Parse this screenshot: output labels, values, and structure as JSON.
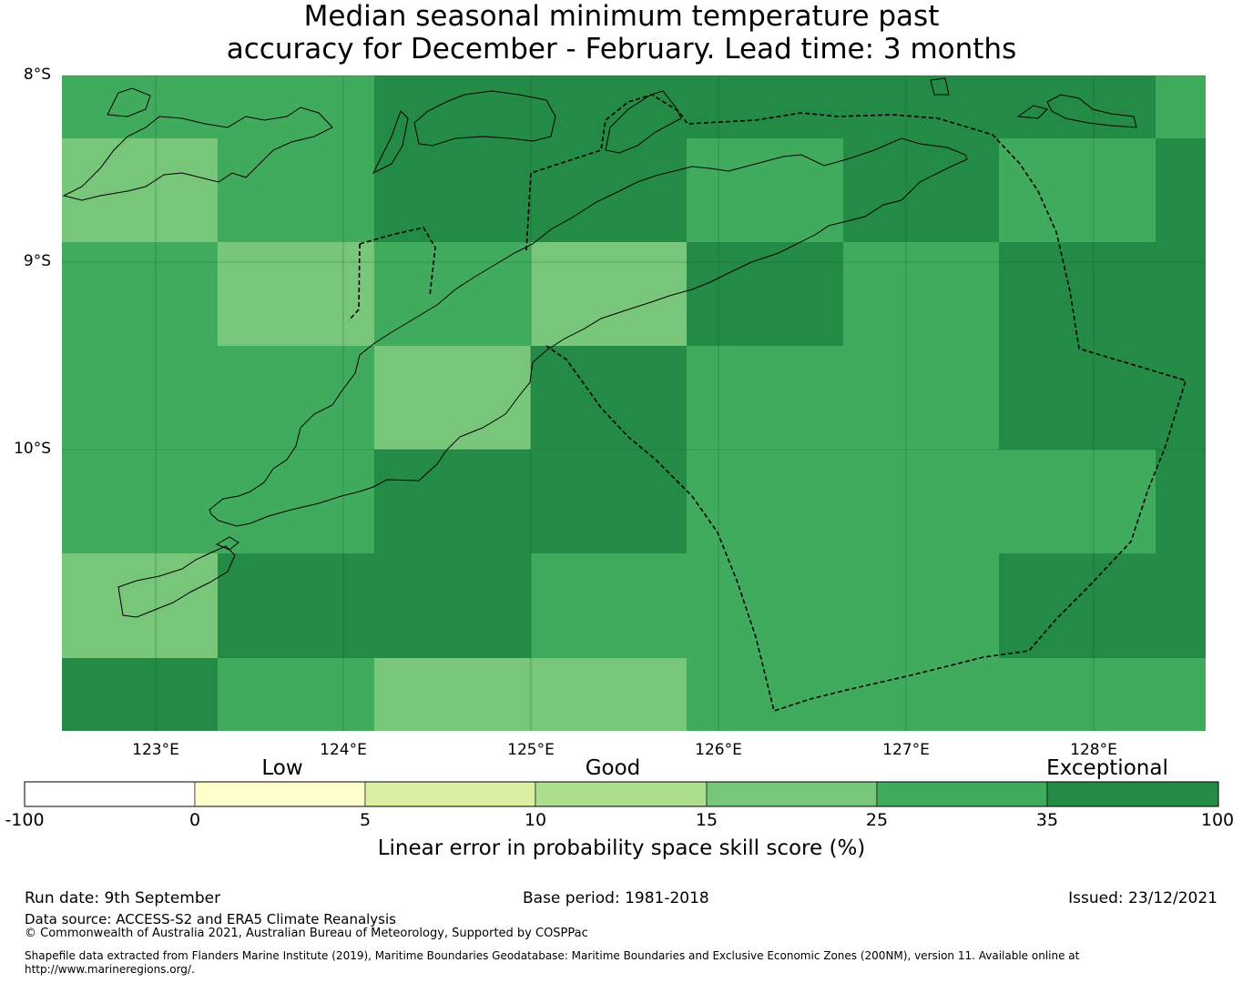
{
  "title_line1": "Median seasonal minimum temperature past",
  "title_line2": "accuracy for December - February. Lead time: 3 months",
  "map": {
    "lat_labels": [
      "8°S",
      "9°S",
      "10°S"
    ],
    "lon_labels": [
      "123°E",
      "124°E",
      "125°E",
      "126°E",
      "127°E",
      "128°E"
    ],
    "category_colors": {
      "exceptional": "#238b45",
      "good25": "#41ab5d",
      "good15": "#78c679"
    },
    "grid": [
      [
        "good25",
        "good25",
        "exceptional",
        "exceptional",
        "exceptional",
        "exceptional",
        "exceptional",
        "good25"
      ],
      [
        "good15",
        "good25",
        "exceptional",
        "exceptional",
        "good25",
        "exceptional",
        "good25",
        "exceptional"
      ],
      [
        "good25",
        "good15",
        "good25",
        "good15",
        "exceptional",
        "good25",
        "exceptional",
        "exceptional"
      ],
      [
        "good25",
        "good25",
        "good15",
        "exceptional",
        "good25",
        "good25",
        "exceptional",
        "exceptional"
      ],
      [
        "good25",
        "good25",
        "exceptional",
        "exceptional",
        "good25",
        "good25",
        "good25",
        "exceptional"
      ],
      [
        "good15",
        "exceptional",
        "exceptional",
        "good25",
        "good25",
        "good25",
        "exceptional",
        "exceptional"
      ],
      [
        "exceptional",
        "good25",
        "good15",
        "good15",
        "good25",
        "good25",
        "good25",
        "good25"
      ]
    ]
  },
  "colorbar": {
    "category_labels": [
      "Low",
      "Good",
      "Exceptional"
    ],
    "tick_labels": [
      "-100",
      "0",
      "5",
      "10",
      "15",
      "25",
      "35",
      "100"
    ],
    "colors": [
      "#ffffff",
      "#ffffcc",
      "#d9f0a3",
      "#addd8e",
      "#78c679",
      "#41ab5d",
      "#238b45"
    ],
    "label": "Linear error in probability space skill score (%)"
  },
  "footer": {
    "run_date": "Run date: 9th September",
    "base_period": "Base period: 1981-2018",
    "issued": "Issued: 23/12/2021",
    "data_source": "Data source: ACCESS-S2 and ERA5 Climate Reanalysis",
    "copyright": "© Commonwealth of Australia 2021, Australian Bureau of Meteorology, Supported by COSPPac",
    "shapefile_line1": "Shapefile data extracted from Flanders Marine Institute (2019), Maritime Boundaries Geodatabase: Maritime Boundaries and Exclusive Economic Zones (200NM), version 11. Available online at",
    "shapefile_line2": "http://www.marineregions.org/."
  }
}
